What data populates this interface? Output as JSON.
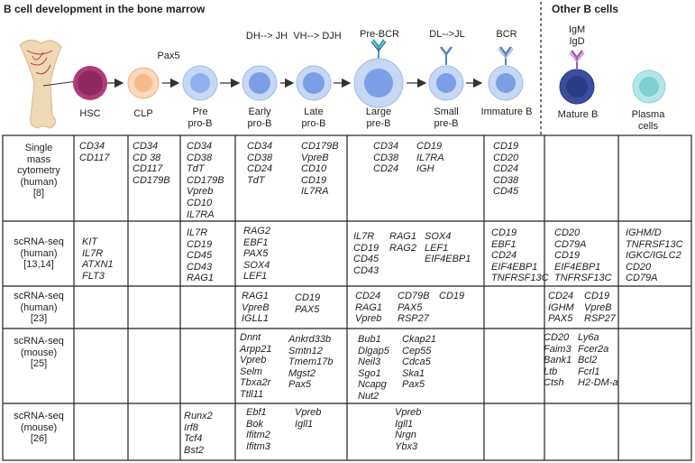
{
  "title": "B cell development in the bone marrow",
  "other_title": "Other B cells",
  "stages": [
    "HSC",
    "CLP",
    "Pre\npro-B",
    "Early\npro-B",
    "Late\npro-B",
    "Large\npre-B",
    "Small\npre-B",
    "Immature B",
    "Mature B",
    "Plasma\ncells"
  ],
  "steps": {
    "pax5": "Pax5",
    "dh_jh": "DH--> JH",
    "vh_djh": "VH--> DJH",
    "pre_bcr": "Pre-BCR",
    "dl_jl": "DL-->JL",
    "bcr": "BCR",
    "igm_igd": "IgM\nIgD"
  },
  "rows": [
    {
      "label": "Single\nmass\ncytometry\n(human)\n[8]",
      "cells": {
        "hsc": "CD34\nCD117",
        "clp": "CD34\nCD 38\nCD117\nCD179B",
        "prepro": "CD34\nCD38\nTdT\nCD179B\nVpreb\nCD10\nIL7RA",
        "early": "CD34\nCD38\nCD24\nTdT",
        "late": "CD179B\nVpreB\nCD10\nCD19\nIL7RA",
        "large": "CD34\nCD38\nCD24",
        "small": "CD19\nIL7RA\nIGH",
        "immature": "CD19\nCD20\nCD24\nCD38\nCD45"
      }
    },
    {
      "label": "scRNA-seq\n(human)\n[13,14]",
      "cells": {
        "hsc": "KIT\nIL7R\nATXN1\nFLT3",
        "prepro": "IL7R\nCD19\nCD45\nCD43\nRAG1",
        "early": "RAG2\nEBF1\nPAX5\nSOX4\nLEF1",
        "large": "IL7R\nCD19\nCD45\nCD43",
        "large2": "RAG1\nRAG2",
        "small": "SOX4\nLEF1\nEIF4EBP1",
        "immature": "CD19\nEBF1\nCD24\nEIF4EBP1\nTNFRSF13C",
        "mature": "CD20\nCD79A\nCD19\nEIF4EBP1\nTNFRSF13C",
        "plasma": "IGHM/D\nTNFRSF13C\nIGKC/IGLC2\nCD20\nCD79A"
      }
    },
    {
      "label": "scRNA-seq\n(human)\n[23]",
      "cells": {
        "early": "RAG1\nVpreB\nIGLL1",
        "late": "CD19\nPAX5",
        "large": "CD24\nRAG1\nVpreb",
        "large2": "CD79B\nPAX5\nRSP27",
        "small": "CD19",
        "mature": "CD24\nIGHM\nPAX5",
        "mature2": "CD19\nVpreB\nRSP27"
      }
    },
    {
      "label": "scRNA-seq\n(mouse)\n[25]",
      "cells": {
        "early": "Dnnt\nArpp21\nVpreb\nSelm\nTbxa2r\nTtll11",
        "late": "Ankrd33b\nSmtn12\nTmem17b\nMgst2\nPax5",
        "large": "Bub1\nDlgap5\nNeil3\nSgo1\nNcapg\nNut2",
        "small": "Ckap21\nCep55\nCdca5\nSka1\nPax5",
        "mature": "CD20\nFaim3\nBank1\nLtb\nCtsh",
        "mature2": "Ly6a\nFcer2a\nBcl2\nFcrl1\nH2-DM-a"
      }
    },
    {
      "label": "scRNA-seq\n(mouse)\n[26]",
      "cells": {
        "prepro": "Runx2\nIrf8\nTcf4\nBst2",
        "early": "Ebf1\nBok\nIfitm2\nIfitm3",
        "late": "Vpreb\nIgll1",
        "large": "Vpreb\nIgll1\nNrgn\nYbx3"
      }
    }
  ],
  "colors": {
    "bone": "#efd9b4",
    "hsc": "#8e2a5e",
    "clp": "#f6b98a",
    "preB": "#8fb0ee",
    "mature": "#2b3c86",
    "plasma": "#7fd0d2",
    "receptor_bcr": "#5a7fc0",
    "receptor_prebcr": "#3aa6b0",
    "receptor_igm": "#9b5da8"
  }
}
